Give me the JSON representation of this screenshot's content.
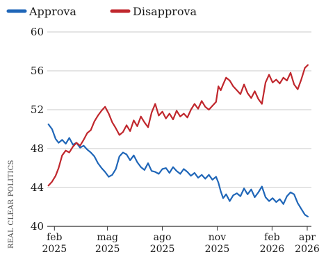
{
  "chart_data": {
    "type": "line",
    "title": "",
    "xlabel": "",
    "ylabel": "",
    "source_label": "REAL CLEAR POLITICS",
    "ylim": [
      40,
      60
    ],
    "yticks": [
      40,
      44,
      48,
      52,
      56,
      60
    ],
    "xlim": [
      "2025-01-20",
      "2026-04-08"
    ],
    "xticks": [
      {
        "date": "2025-02-01",
        "line1": "feb",
        "line2": "2025"
      },
      {
        "date": "2025-05-01",
        "line1": "mag",
        "line2": "2025"
      },
      {
        "date": "2025-08-01",
        "line1": "ago",
        "line2": "2025"
      },
      {
        "date": "2025-11-01",
        "line1": "nov",
        "line2": "2025"
      },
      {
        "date": "2026-02-01",
        "line1": "feb",
        "line2": "2026"
      },
      {
        "date": "2026-04-01",
        "line1": "apr",
        "line2": "2026"
      }
    ],
    "grid": true,
    "legend_position": "top-left",
    "series": [
      {
        "name": "Approva",
        "color": "#1f66b8",
        "points": [
          [
            "2025-01-22",
            50.5
          ],
          [
            "2025-01-28",
            50.0
          ],
          [
            "2025-02-03",
            49.0
          ],
          [
            "2025-02-08",
            48.6
          ],
          [
            "2025-02-14",
            48.9
          ],
          [
            "2025-02-20",
            48.5
          ],
          [
            "2025-02-26",
            49.1
          ],
          [
            "2025-03-04",
            48.4
          ],
          [
            "2025-03-10",
            48.6
          ],
          [
            "2025-03-16",
            48.1
          ],
          [
            "2025-03-22",
            48.3
          ],
          [
            "2025-03-28",
            47.9
          ],
          [
            "2025-04-03",
            47.6
          ],
          [
            "2025-04-09",
            47.2
          ],
          [
            "2025-04-15",
            46.5
          ],
          [
            "2025-04-21",
            46.0
          ],
          [
            "2025-04-27",
            45.6
          ],
          [
            "2025-05-03",
            45.1
          ],
          [
            "2025-05-09",
            45.3
          ],
          [
            "2025-05-15",
            45.9
          ],
          [
            "2025-05-21",
            47.2
          ],
          [
            "2025-05-27",
            47.6
          ],
          [
            "2025-06-02",
            47.4
          ],
          [
            "2025-06-08",
            46.8
          ],
          [
            "2025-06-14",
            47.3
          ],
          [
            "2025-06-20",
            46.6
          ],
          [
            "2025-06-26",
            46.1
          ],
          [
            "2025-07-02",
            45.8
          ],
          [
            "2025-07-08",
            46.5
          ],
          [
            "2025-07-14",
            45.7
          ],
          [
            "2025-07-20",
            45.6
          ],
          [
            "2025-07-26",
            45.4
          ],
          [
            "2025-08-01",
            45.9
          ],
          [
            "2025-08-07",
            46.0
          ],
          [
            "2025-08-13",
            45.5
          ],
          [
            "2025-08-19",
            46.1
          ],
          [
            "2025-08-25",
            45.7
          ],
          [
            "2025-08-31",
            45.4
          ],
          [
            "2025-09-06",
            45.9
          ],
          [
            "2025-09-12",
            45.6
          ],
          [
            "2025-09-18",
            45.2
          ],
          [
            "2025-09-24",
            45.5
          ],
          [
            "2025-09-30",
            45.0
          ],
          [
            "2025-10-06",
            45.3
          ],
          [
            "2025-10-12",
            44.9
          ],
          [
            "2025-10-18",
            45.3
          ],
          [
            "2025-10-24",
            44.8
          ],
          [
            "2025-10-30",
            45.1
          ],
          [
            "2025-11-03",
            44.5
          ],
          [
            "2025-11-07",
            43.6
          ],
          [
            "2025-11-11",
            42.9
          ],
          [
            "2025-11-16",
            43.3
          ],
          [
            "2025-11-22",
            42.6
          ],
          [
            "2025-11-28",
            43.2
          ],
          [
            "2025-12-04",
            43.4
          ],
          [
            "2025-12-10",
            43.1
          ],
          [
            "2025-12-16",
            43.9
          ],
          [
            "2025-12-22",
            43.3
          ],
          [
            "2025-12-28",
            43.8
          ],
          [
            "2026-01-03",
            43.0
          ],
          [
            "2026-01-09",
            43.5
          ],
          [
            "2026-01-15",
            44.1
          ],
          [
            "2026-01-21",
            43.0
          ],
          [
            "2026-01-27",
            42.6
          ],
          [
            "2026-02-02",
            42.9
          ],
          [
            "2026-02-08",
            42.5
          ],
          [
            "2026-02-14",
            42.8
          ],
          [
            "2026-02-20",
            42.3
          ],
          [
            "2026-02-26",
            43.1
          ],
          [
            "2026-03-04",
            43.5
          ],
          [
            "2026-03-10",
            43.3
          ],
          [
            "2026-03-16",
            42.4
          ],
          [
            "2026-03-22",
            41.8
          ],
          [
            "2026-03-28",
            41.2
          ],
          [
            "2026-04-02",
            41.0
          ]
        ]
      },
      {
        "name": "Disapprova",
        "color": "#c0272d",
        "points": [
          [
            "2025-01-22",
            44.2
          ],
          [
            "2025-01-28",
            44.6
          ],
          [
            "2025-02-03",
            45.2
          ],
          [
            "2025-02-08",
            46.0
          ],
          [
            "2025-02-14",
            47.3
          ],
          [
            "2025-02-20",
            47.8
          ],
          [
            "2025-02-26",
            47.6
          ],
          [
            "2025-03-04",
            48.2
          ],
          [
            "2025-03-10",
            48.6
          ],
          [
            "2025-03-16",
            48.3
          ],
          [
            "2025-03-22",
            48.9
          ],
          [
            "2025-03-28",
            49.6
          ],
          [
            "2025-04-03",
            49.9
          ],
          [
            "2025-04-09",
            50.8
          ],
          [
            "2025-04-15",
            51.4
          ],
          [
            "2025-04-21",
            51.9
          ],
          [
            "2025-04-27",
            52.3
          ],
          [
            "2025-05-03",
            51.6
          ],
          [
            "2025-05-09",
            50.7
          ],
          [
            "2025-05-15",
            50.1
          ],
          [
            "2025-05-21",
            49.4
          ],
          [
            "2025-05-27",
            49.7
          ],
          [
            "2025-06-02",
            50.4
          ],
          [
            "2025-06-08",
            49.8
          ],
          [
            "2025-06-14",
            50.9
          ],
          [
            "2025-06-20",
            50.3
          ],
          [
            "2025-06-26",
            51.3
          ],
          [
            "2025-07-02",
            50.7
          ],
          [
            "2025-07-08",
            50.2
          ],
          [
            "2025-07-14",
            51.7
          ],
          [
            "2025-07-20",
            52.6
          ],
          [
            "2025-07-26",
            51.4
          ],
          [
            "2025-08-01",
            51.8
          ],
          [
            "2025-08-07",
            51.1
          ],
          [
            "2025-08-13",
            51.6
          ],
          [
            "2025-08-19",
            51.0
          ],
          [
            "2025-08-25",
            51.9
          ],
          [
            "2025-08-31",
            51.3
          ],
          [
            "2025-09-06",
            51.6
          ],
          [
            "2025-09-12",
            51.2
          ],
          [
            "2025-09-18",
            52.0
          ],
          [
            "2025-09-24",
            52.6
          ],
          [
            "2025-09-30",
            52.1
          ],
          [
            "2025-10-06",
            52.9
          ],
          [
            "2025-10-12",
            52.3
          ],
          [
            "2025-10-18",
            52.0
          ],
          [
            "2025-10-24",
            52.4
          ],
          [
            "2025-10-30",
            52.8
          ],
          [
            "2025-11-03",
            54.4
          ],
          [
            "2025-11-07",
            54.0
          ],
          [
            "2025-11-11",
            54.6
          ],
          [
            "2025-11-16",
            55.3
          ],
          [
            "2025-11-22",
            55.0
          ],
          [
            "2025-11-28",
            54.4
          ],
          [
            "2025-12-04",
            54.0
          ],
          [
            "2025-12-10",
            53.6
          ],
          [
            "2025-12-16",
            54.6
          ],
          [
            "2025-12-22",
            53.7
          ],
          [
            "2025-12-28",
            53.2
          ],
          [
            "2026-01-03",
            53.9
          ],
          [
            "2026-01-09",
            53.1
          ],
          [
            "2026-01-15",
            52.6
          ],
          [
            "2026-01-21",
            54.8
          ],
          [
            "2026-01-27",
            55.6
          ],
          [
            "2026-02-02",
            54.8
          ],
          [
            "2026-02-08",
            55.1
          ],
          [
            "2026-02-14",
            54.7
          ],
          [
            "2026-02-20",
            55.3
          ],
          [
            "2026-02-26",
            55.0
          ],
          [
            "2026-03-04",
            55.8
          ],
          [
            "2026-03-10",
            54.6
          ],
          [
            "2026-03-16",
            54.1
          ],
          [
            "2026-03-22",
            55.1
          ],
          [
            "2026-03-28",
            56.3
          ],
          [
            "2026-04-02",
            56.6
          ]
        ]
      }
    ]
  }
}
